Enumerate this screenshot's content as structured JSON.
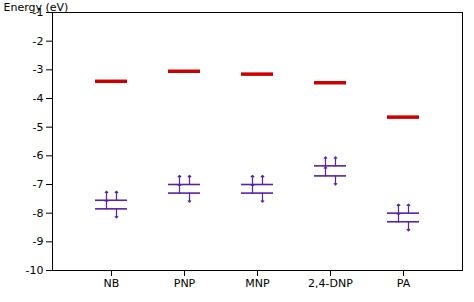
{
  "chart_data": {
    "type": "energy_level",
    "categories": [
      "NB",
      "PNP",
      "MNP",
      "2,4-DNP",
      "PA"
    ],
    "ylabel": "Energy (eV)",
    "ylim": [
      -10,
      -1
    ],
    "yticks": [
      -10,
      -9,
      -8,
      -7,
      -6,
      -5,
      -4,
      -3,
      -2,
      -1
    ],
    "grid": false,
    "series": [
      {
        "color": "#cc0000",
        "values": [
          -3.4,
          -3.05,
          -3.15,
          -3.45,
          -4.65
        ]
      },
      {
        "color": "#5522aa",
        "values": [
          -7.55,
          -7.0,
          -7.0,
          -6.35,
          -8.0
        ],
        "marker": "arrows_up"
      },
      {
        "color": "#5522aa",
        "values": [
          -7.85,
          -7.3,
          -7.3,
          -6.7,
          -8.3
        ],
        "marker": "arrows_up_down"
      }
    ]
  }
}
